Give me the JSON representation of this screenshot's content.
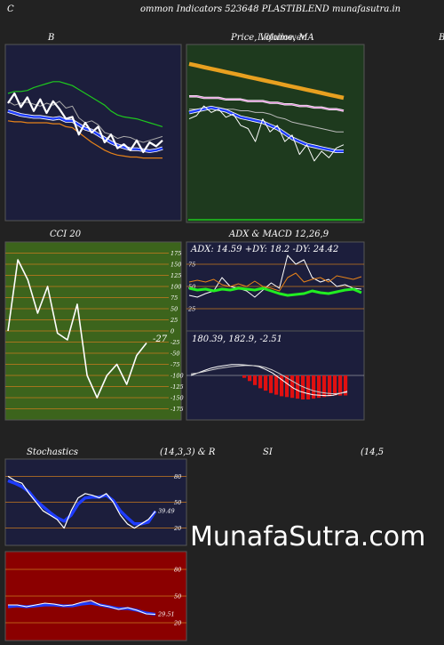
{
  "header": {
    "left": "C",
    "title": "ommon  Indicators 523648  PLASTIBLEND munafasutra.in"
  },
  "panels": {
    "bb": {
      "label": "B"
    },
    "price": {
      "label": "Price,  Volume,  MA",
      "overlay": "Lilfollower"
    },
    "right_edge": {
      "label": "B"
    },
    "cci": {
      "label": "CCI 20",
      "value_label": "-27",
      "levels": [
        "175",
        "150",
        "125",
        "100",
        "75",
        "50",
        "25",
        "0",
        "-25",
        "-50",
        "-75",
        "-100",
        "-125",
        "-150",
        "-175"
      ]
    },
    "adx": {
      "label": "ADX  & MACD 12,26,9",
      "values": "ADX: 14.59  +DY: 18.2  -DY: 24.42",
      "levels": [
        "75",
        "50",
        "25"
      ]
    },
    "macd": {
      "values": "180.39,  182.9,  -2.51"
    },
    "stoch": {
      "label": "Stochastics",
      "params": "(14,3,3) & R",
      "levels": [
        "80",
        "50",
        "20"
      ],
      "value_label": "39.49"
    },
    "rsi": {
      "label": "SI",
      "params": "(14,5",
      "levels": [
        "80",
        "50",
        "20"
      ],
      "value_label": "29.51"
    }
  },
  "watermark": "MunafaSutra.com",
  "colors": {
    "background": "#222222",
    "panel_navy": "#1c1e3c",
    "panel_green": "#1e3a1e",
    "cci_green": "#3c641c",
    "rsi_red": "#8b0000",
    "grid_orange": "#c87a1e",
    "line_blue": "#1e3cff",
    "line_green": "#1ec81e",
    "line_orange": "#e68219"
  },
  "chart_data": [
    {
      "type": "line",
      "title": "B",
      "series": [
        {
          "values": [
            62,
            58,
            60,
            61,
            59,
            57,
            60,
            58,
            62,
            55,
            57,
            45,
            40,
            42,
            38,
            30,
            28,
            24,
            26,
            25,
            22,
            20,
            22,
            24,
            26
          ]
        },
        {
          "values": [
            52,
            50,
            48,
            47,
            46,
            46,
            45,
            44,
            45,
            42,
            42,
            38,
            34,
            32,
            28,
            24,
            20,
            17,
            15,
            13,
            13,
            12,
            11,
            12,
            14
          ]
        },
        {
          "values": [
            42,
            41,
            41,
            40,
            40,
            40,
            40,
            39,
            39,
            36,
            35,
            30,
            25,
            20,
            16,
            12,
            9,
            7,
            6,
            5,
            5,
            4,
            4,
            4,
            4
          ]
        },
        {
          "values": [
            70,
            72,
            72,
            73,
            76,
            78,
            80,
            82,
            82,
            80,
            78,
            74,
            70,
            66,
            62,
            58,
            52,
            48,
            46,
            45,
            44,
            42,
            40,
            38,
            36
          ]
        },
        {
          "values": [
            60,
            70,
            56,
            66,
            52,
            64,
            50,
            62,
            54,
            44,
            46,
            28,
            40,
            30,
            36,
            20,
            28,
            14,
            18,
            12,
            22,
            10,
            20,
            16,
            22
          ]
        }
      ]
    },
    {
      "type": "line",
      "title": "Price,  Volume,  MA",
      "series": [
        {
          "values": [
            78,
            77,
            76,
            75,
            74,
            73,
            72,
            71,
            70,
            69,
            68,
            67,
            66,
            65,
            64,
            63,
            62,
            61,
            60,
            59,
            58,
            57
          ]
        },
        {
          "values": [
            58,
            58,
            57,
            57,
            57,
            56,
            56,
            56,
            55,
            55,
            55,
            54,
            54,
            53,
            53,
            52,
            52,
            51,
            51,
            50,
            50,
            49
          ]
        },
        {
          "values": [
            50,
            50,
            50,
            51,
            51,
            50,
            50,
            49,
            49,
            48,
            48,
            47,
            45,
            44,
            42,
            41,
            40,
            39,
            38,
            37,
            36,
            36
          ]
        },
        {
          "values": [
            48,
            49,
            50,
            51,
            50,
            49,
            47,
            45,
            44,
            43,
            42,
            40,
            38,
            35,
            32,
            30,
            28,
            27,
            26,
            25,
            24,
            24
          ]
        },
        {
          "values": [
            44,
            46,
            52,
            48,
            50,
            45,
            47,
            40,
            38,
            30,
            44,
            36,
            40,
            30,
            34,
            22,
            28,
            18,
            24,
            20,
            26,
            28
          ]
        }
      ]
    },
    {
      "type": "line",
      "title": "CCI 20",
      "series": [
        {
          "values": [
            0,
            160,
            115,
            40,
            100,
            -5,
            -20,
            60,
            -100,
            -150,
            -100,
            -75,
            -120,
            -55,
            -27
          ]
        }
      ]
    },
    {
      "type": "line",
      "title": "ADX  & MACD 12,26,9",
      "series": [
        {
          "values": [
            48,
            46,
            47,
            45,
            47,
            46,
            48,
            47,
            46,
            48,
            45,
            42,
            40,
            41,
            42,
            45,
            43,
            42,
            44,
            46,
            47,
            43
          ]
        },
        {
          "values": [
            40,
            38,
            42,
            45,
            60,
            50,
            48,
            45,
            38,
            46,
            54,
            48,
            85,
            75,
            80,
            60,
            55,
            58,
            50,
            52,
            48,
            47
          ]
        },
        {
          "values": [
            55,
            57,
            55,
            58,
            52,
            50,
            53,
            50,
            56,
            50,
            48,
            45,
            60,
            65,
            55,
            58,
            60,
            55,
            62,
            60,
            58,
            61
          ]
        }
      ]
    },
    {
      "type": "bar",
      "title": "MACD",
      "values": [
        0,
        0,
        0,
        0,
        0,
        0,
        0,
        0,
        0,
        0,
        -0.3,
        -0.7,
        -1.2,
        -1.6,
        -1.9,
        -2.2,
        -2.4,
        -2.6,
        -2.7,
        -2.8,
        -2.9,
        -3.0,
        -3.0,
        -2.9,
        -2.8,
        -2.7,
        -2.6,
        -2.5,
        -2.51,
        -2.5
      ]
    },
    {
      "type": "line",
      "title": "Stochastics",
      "ylim": [
        0,
        100
      ],
      "series": [
        {
          "values": [
            80,
            75,
            72,
            60,
            50,
            40,
            35,
            30,
            20,
            40,
            55,
            60,
            58,
            55,
            60,
            50,
            35,
            25,
            20,
            25,
            30,
            39.49
          ]
        },
        {
          "values": [
            75,
            72,
            68,
            62,
            52,
            45,
            38,
            32,
            28,
            35,
            48,
            55,
            56,
            56,
            58,
            52,
            40,
            32,
            25,
            25,
            27,
            39.49
          ]
        }
      ]
    },
    {
      "type": "line",
      "title": "SI",
      "ylim": [
        0,
        100
      ],
      "series": [
        {
          "values": [
            40,
            40,
            38,
            40,
            42,
            41,
            39,
            40,
            43,
            45,
            40,
            38,
            35,
            37,
            34,
            30,
            29.51
          ]
        },
        {
          "values": [
            38,
            39,
            38,
            39,
            40,
            40,
            39,
            39,
            41,
            42,
            40,
            38,
            36,
            36,
            34,
            31,
            29.51
          ]
        }
      ]
    }
  ]
}
